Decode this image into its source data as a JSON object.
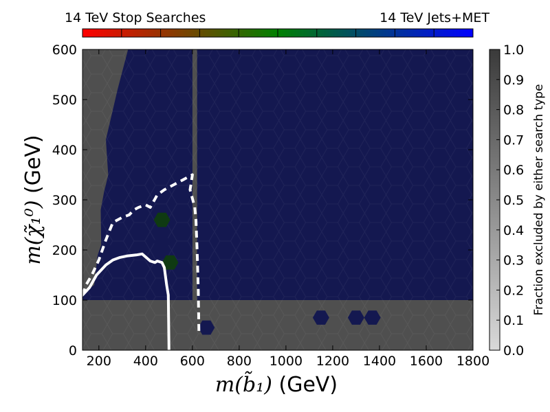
{
  "chart_data": {
    "type": "heatmap",
    "subtype": "hexbin",
    "xlabel_math": "m(b̃₁)",
    "xlabel_unit": "(GeV)",
    "ylabel_math": "m(χ̃₁⁰)",
    "ylabel_unit": "(GeV)",
    "xlim": [
      130,
      1800
    ],
    "ylim": [
      0,
      600
    ],
    "xticks": [
      200,
      400,
      600,
      800,
      1000,
      1200,
      1400,
      1600,
      1800
    ],
    "yticks": [
      0,
      100,
      200,
      300,
      400,
      500,
      600
    ],
    "colorbar_top": {
      "left_label": "14 TeV Stop Searches",
      "right_label": "14 TeV Jets+MET",
      "colors": [
        "#ff0000",
        "#7f3f00",
        "#008000",
        "#003f7f",
        "#0000ff"
      ],
      "segments": 10
    },
    "colorbar_right": {
      "label": "Fraction excluded by either search type",
      "range": [
        0.0,
        1.0
      ],
      "ticks": [
        "0.0",
        "0.1",
        "0.2",
        "0.3",
        "0.4",
        "0.5",
        "0.6",
        "0.7",
        "0.8",
        "0.9",
        "1.0"
      ],
      "colors": [
        "#d9d9d9",
        "#3a3a3a"
      ]
    },
    "background_color": "#4f4f4f",
    "excluded_region_color": "#141850",
    "excluded_region_boundary": [
      [
        120,
        110
      ],
      [
        180,
        130
      ],
      [
        195,
        190
      ],
      [
        210,
        210
      ],
      [
        208,
        280
      ],
      [
        228,
        330
      ],
      [
        225,
        320
      ],
      [
        240,
        350
      ],
      [
        230,
        420
      ],
      [
        245,
        450
      ],
      [
        280,
        520
      ],
      [
        325,
        600
      ],
      [
        600,
        600
      ],
      [
        600,
        100
      ],
      [
        130,
        100
      ]
    ],
    "jets_met_region_boundary": [
      [
        265,
        600
      ],
      [
        1800,
        600
      ],
      [
        1800,
        100
      ],
      [
        620,
        100
      ],
      [
        620,
        600
      ]
    ],
    "isolated_hexes": [
      {
        "x": 470,
        "y": 260,
        "tone": "green"
      },
      {
        "x": 470,
        "y": 215,
        "tone": "blue"
      },
      {
        "x": 375,
        "y": 195,
        "tone": "blue"
      },
      {
        "x": 240,
        "y": 195,
        "tone": "blue"
      },
      {
        "x": 505,
        "y": 175,
        "tone": "green"
      },
      {
        "x": 660,
        "y": 45,
        "tone": "blue"
      },
      {
        "x": 1150,
        "y": 65,
        "tone": "blue"
      },
      {
        "x": 1300,
        "y": 65,
        "tone": "blue"
      },
      {
        "x": 1370,
        "y": 65,
        "tone": "blue"
      }
    ],
    "solid_contour": [
      [
        130,
        110
      ],
      [
        160,
        125
      ],
      [
        190,
        150
      ],
      [
        230,
        170
      ],
      [
        260,
        180
      ],
      [
        290,
        185
      ],
      [
        320,
        188
      ],
      [
        360,
        190
      ],
      [
        385,
        192
      ],
      [
        420,
        178
      ],
      [
        440,
        175
      ],
      [
        450,
        178
      ],
      [
        470,
        175
      ],
      [
        480,
        165
      ],
      [
        490,
        130
      ],
      [
        497,
        110
      ],
      [
        500,
        0
      ]
    ],
    "dashed_contour": [
      [
        130,
        110
      ],
      [
        145,
        130
      ],
      [
        170,
        150
      ],
      [
        200,
        180
      ],
      [
        230,
        220
      ],
      [
        260,
        255
      ],
      [
        300,
        265
      ],
      [
        330,
        270
      ],
      [
        350,
        280
      ],
      [
        370,
        285
      ],
      [
        400,
        290
      ],
      [
        420,
        285
      ],
      [
        450,
        310
      ],
      [
        480,
        320
      ],
      [
        520,
        330
      ],
      [
        560,
        340
      ],
      [
        600,
        350
      ],
      [
        590,
        320
      ],
      [
        610,
        285
      ],
      [
        615,
        260
      ],
      [
        620,
        200
      ],
      [
        625,
        120
      ],
      [
        628,
        30
      ]
    ]
  }
}
